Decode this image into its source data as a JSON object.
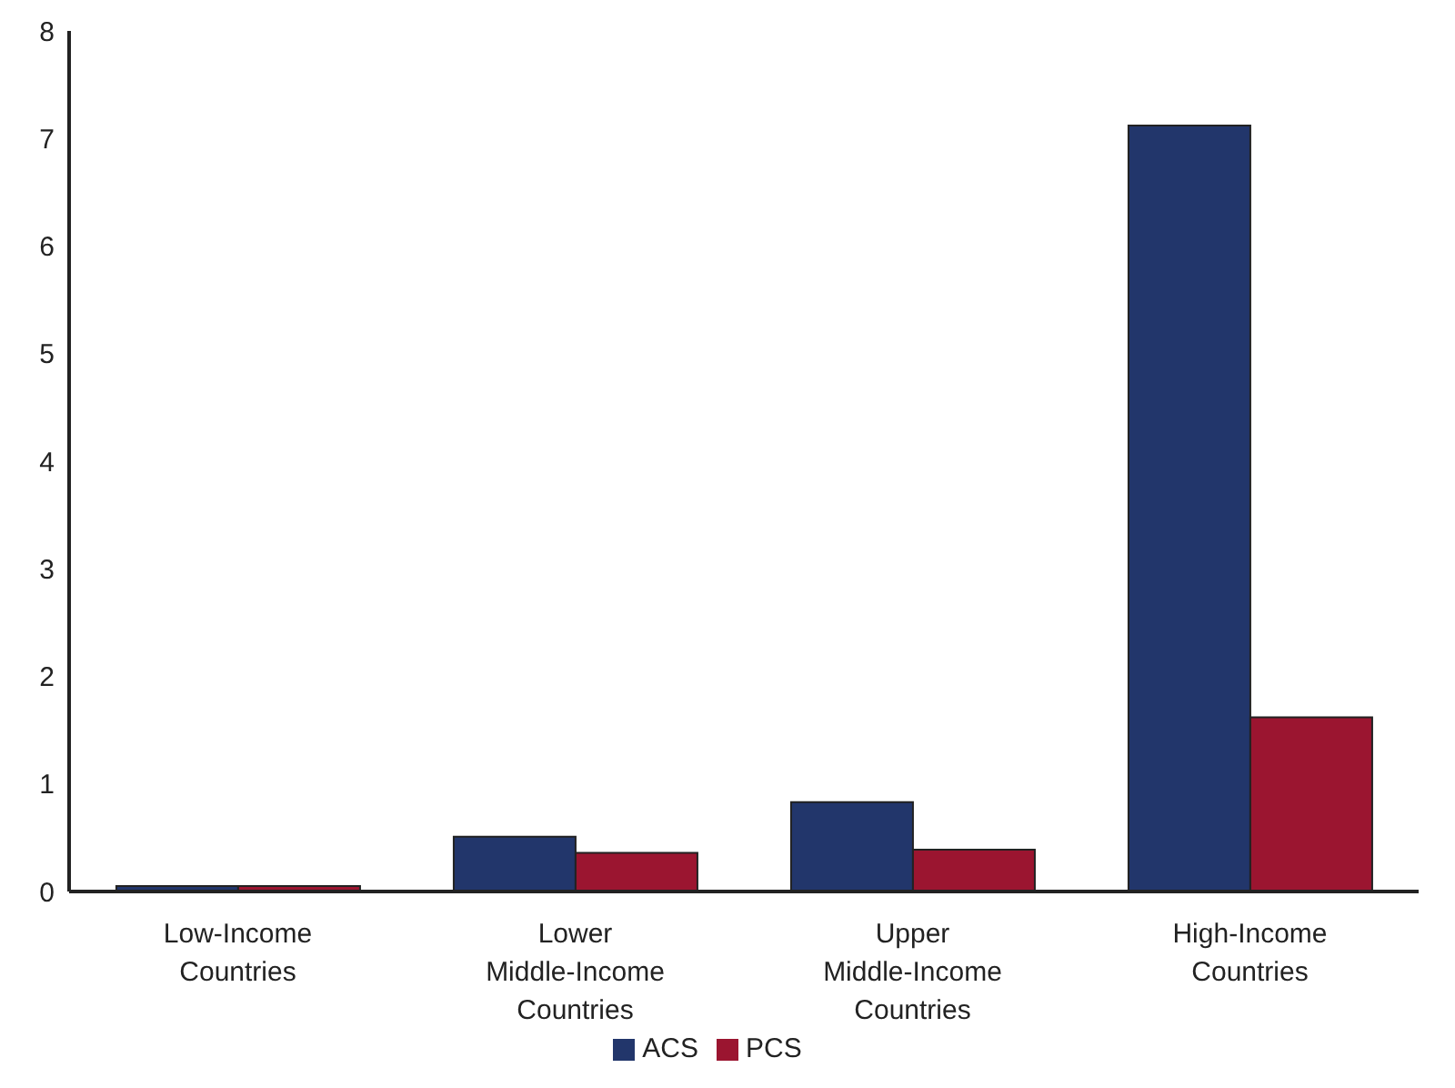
{
  "chart_data": {
    "type": "bar",
    "categories": [
      "Low-Income Countries",
      "Lower Middle-Income Countries",
      "Upper Middle-Income Countries",
      "High-Income Countries"
    ],
    "series": [
      {
        "name": "ACS",
        "color": "#22366b",
        "values": [
          0.05,
          0.51,
          0.83,
          7.12
        ]
      },
      {
        "name": "PCS",
        "color": "#9b1530",
        "values": [
          0.05,
          0.36,
          0.39,
          1.62
        ]
      }
    ],
    "ylim": [
      0,
      8
    ],
    "yticks": [
      0,
      1,
      2,
      3,
      4,
      5,
      6,
      7,
      8
    ],
    "grid": false,
    "legend": "bottom"
  }
}
